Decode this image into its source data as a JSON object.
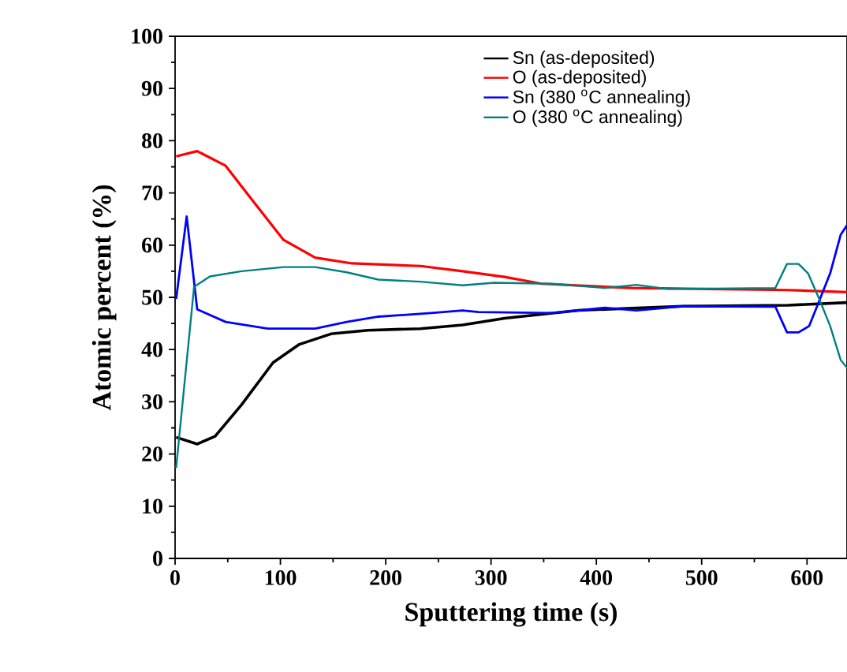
{
  "chart_data": {
    "type": "line",
    "xlabel": "Sputtering time (s)",
    "ylabel": "Atomic percent (%)",
    "xlim": [
      0,
      638
    ],
    "ylim": [
      0,
      100
    ],
    "xticks": [
      0,
      100,
      200,
      300,
      400,
      500,
      600
    ],
    "yticks": [
      0,
      10,
      20,
      30,
      40,
      50,
      60,
      70,
      80,
      90,
      100
    ],
    "legend": "top right",
    "grid": false,
    "marker": "none",
    "line_style": "solid",
    "series": [
      {
        "name": "Sn (as-deposited)",
        "color": "#000000",
        "x": [
          1,
          21,
          38,
          63,
          93,
          118,
          148,
          183,
          233,
          273,
          313,
          383,
          482,
          582,
          638
        ],
        "values": [
          23.2,
          21.9,
          23.4,
          29.4,
          37.5,
          41,
          43,
          43.7,
          44,
          44.7,
          46,
          47.5,
          48.3,
          48.5,
          49
        ]
      },
      {
        "name": "O (as-deposited)",
        "color": "#ff0000",
        "x": [
          1,
          21,
          48,
          73,
          103,
          133,
          168,
          233,
          273,
          313,
          348,
          433,
          582,
          638
        ],
        "values": [
          77,
          78,
          75.2,
          68.7,
          61,
          57.6,
          56.5,
          56,
          55,
          53.9,
          52.6,
          51.8,
          51.4,
          51
        ]
      },
      {
        "name": "Sn (380 $^{o}$C annealing)",
        "color": "#0000ff",
        "x": [
          1,
          11,
          21,
          48,
          88,
          133,
          163,
          193,
          243,
          273,
          288,
          358,
          408,
          438,
          482,
          570,
          581,
          592,
          602,
          612,
          622,
          632,
          638
        ],
        "values": [
          49.7,
          65.5,
          47.7,
          45.3,
          44,
          44,
          45.3,
          46.3,
          47,
          47.5,
          47.2,
          47,
          48,
          47.5,
          48.3,
          48.2,
          43.3,
          43.3,
          44.5,
          49.5,
          54.6,
          62,
          63.8
        ]
      },
      {
        "name": "O (380 $^{o}$C annealing)",
        "color": "#008080",
        "x": [
          1,
          18,
          33,
          63,
          103,
          133,
          163,
          193,
          233,
          273,
          303,
          358,
          408,
          438,
          468,
          570,
          581,
          592,
          601,
          612,
          622,
          632,
          638
        ],
        "values": [
          17.3,
          52,
          54,
          55,
          55.8,
          55.8,
          54.8,
          53.4,
          53,
          52.3,
          52.8,
          52.6,
          51.8,
          52.4,
          51.6,
          51.8,
          56.4,
          56.4,
          54.6,
          49.5,
          44.5,
          38,
          36.5
        ]
      }
    ]
  }
}
